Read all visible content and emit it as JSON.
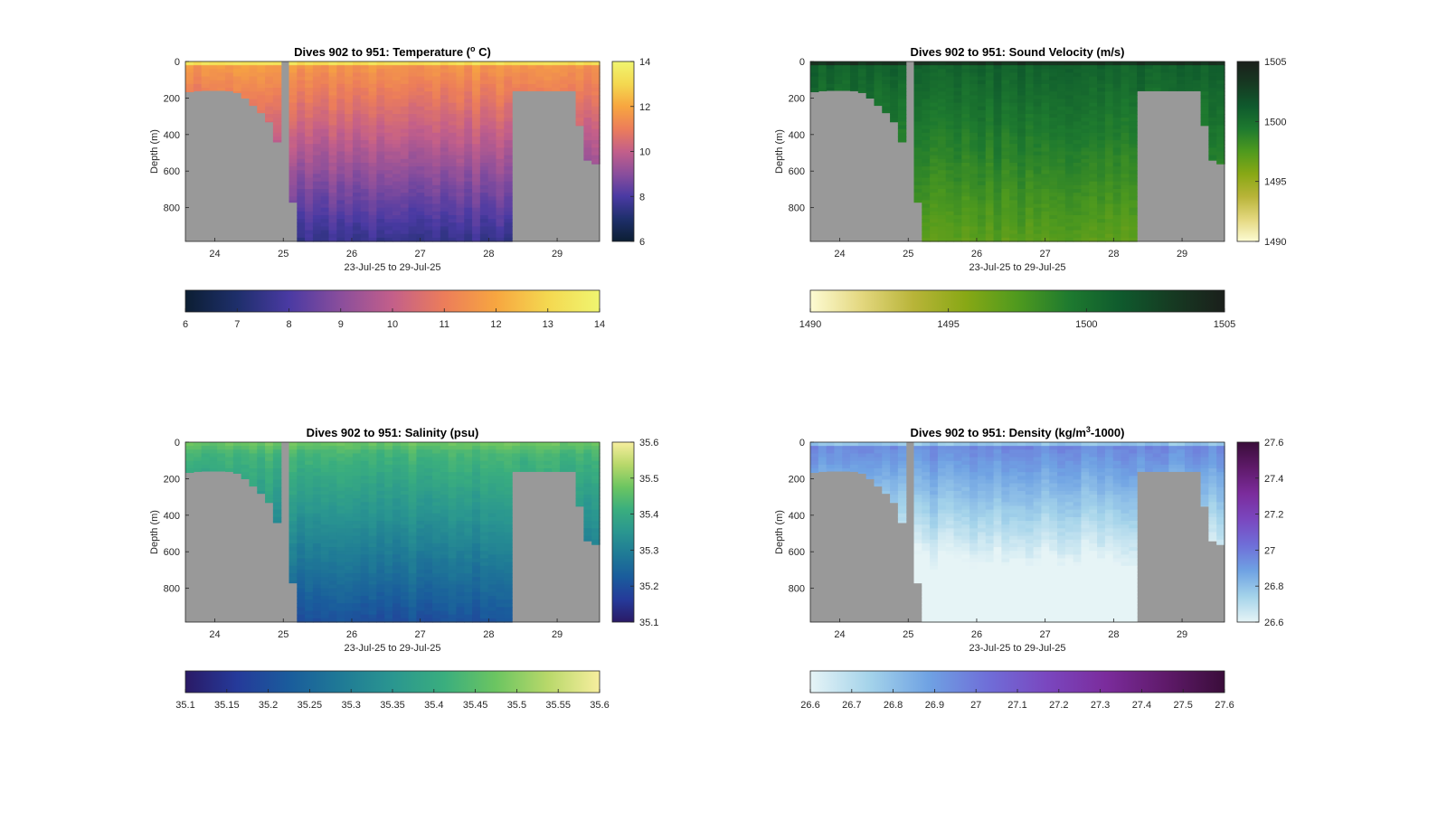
{
  "chart_data": [
    {
      "type": "heatmap",
      "variable": "temperature",
      "title": "Dives 902 to 951: Temperature (",
      "title_sup": "o",
      "title_tail": " C)",
      "xlabel": "23-Jul-25 to 29-Jul-25",
      "ylabel": "Depth (m)",
      "xticks": [
        "24",
        "25",
        "26",
        "27",
        "28",
        "29"
      ],
      "yticks": [
        "0",
        "200",
        "400",
        "600",
        "800"
      ],
      "xlim": [
        23.57,
        29.62
      ],
      "ylim": [
        0,
        985
      ],
      "colorbar_range": [
        6,
        14
      ],
      "side_colorbar_ticks": [
        "6",
        "8",
        "10",
        "12",
        "14"
      ],
      "bottom_colorbar_ticks": [
        "6",
        "7",
        "8",
        "9",
        "10",
        "11",
        "12",
        "13",
        "14"
      ],
      "colormap": [
        "#0c1e33",
        "#1e2f6b",
        "#4a3aa3",
        "#8a4e9c",
        "#c35f8a",
        "#ec7d5a",
        "#f7a640",
        "#f4d850",
        "#f0f570"
      ],
      "profile": {
        "surface": 14,
        "mixed_depth": 30,
        "thermocline_value": 11.6,
        "deep_gradient": 0.0042
      }
    },
    {
      "type": "heatmap",
      "variable": "sound_velocity",
      "title": "Dives 902 to 951: Sound Velocity (m/s)",
      "xlabel": "23-Jul-25 to 29-Jul-25",
      "ylabel": "Depth (m)",
      "xticks": [
        "24",
        "25",
        "26",
        "27",
        "28",
        "29"
      ],
      "yticks": [
        "0",
        "200",
        "400",
        "600",
        "800"
      ],
      "xlim": [
        23.57,
        29.62
      ],
      "ylim": [
        0,
        985
      ],
      "colorbar_range": [
        1490,
        1505
      ],
      "side_colorbar_ticks": [
        "1490",
        "1495",
        "1500",
        "1505"
      ],
      "bottom_colorbar_ticks": [
        "1490",
        "1495",
        "1500",
        "1505"
      ],
      "colormap": [
        "#fdfbd3",
        "#e3d77e",
        "#b8b438",
        "#88a815",
        "#4f9a1e",
        "#1e7a2f",
        "#0f5a2d",
        "#163a22",
        "#1b1f1b"
      ],
      "profile": {
        "surface": 1505,
        "mixed_depth": 30,
        "thermocline_value": 1500.8,
        "deep_gradient": 0.0038
      }
    },
    {
      "type": "heatmap",
      "variable": "salinity",
      "title": "Dives 902 to 951: Salinity (psu)",
      "xlabel": "23-Jul-25 to 29-Jul-25",
      "ylabel": "Depth (m)",
      "xticks": [
        "24",
        "25",
        "26",
        "27",
        "28",
        "29"
      ],
      "yticks": [
        "0",
        "200",
        "400",
        "600",
        "800"
      ],
      "xlim": [
        23.57,
        29.62
      ],
      "ylim": [
        0,
        985
      ],
      "colorbar_range": [
        35.1,
        35.6
      ],
      "side_colorbar_ticks": [
        "35.1",
        "35.2",
        "35.3",
        "35.4",
        "35.5",
        "35.6"
      ],
      "bottom_colorbar_ticks": [
        "35.1",
        "35.15",
        "35.2",
        "35.25",
        "35.3",
        "35.35",
        "35.4",
        "35.45",
        "35.5",
        "35.55",
        "35.6"
      ],
      "colormap": [
        "#2a1a66",
        "#253a9a",
        "#1a5c9c",
        "#1f7a96",
        "#2a9690",
        "#3aae7e",
        "#6cc561",
        "#b8d86a",
        "#f7ee9e"
      ],
      "profile": {
        "surface": 35.48,
        "mixed_depth": 60,
        "thermocline_value": 35.43,
        "deep_gradient": 0.000245
      }
    },
    {
      "type": "heatmap",
      "variable": "density",
      "title": "Dives 902 to 951: Density (kg/m",
      "title_sup": "3",
      "title_tail": "-1000)",
      "xlabel": "23-Jul-25 to 29-Jul-25",
      "ylabel": "Depth (m)",
      "xticks": [
        "24",
        "25",
        "26",
        "27",
        "28",
        "29"
      ],
      "yticks": [
        "0",
        "200",
        "400",
        "600",
        "800"
      ],
      "xlim": [
        23.57,
        29.62
      ],
      "ylim": [
        0,
        985
      ],
      "colorbar_range": [
        26.6,
        27.6
      ],
      "side_colorbar_ticks": [
        "26.6",
        "26.8",
        "27",
        "27.2",
        "27.4",
        "27.6"
      ],
      "bottom_colorbar_ticks": [
        "26.6",
        "26.7",
        "26.8",
        "26.9",
        "27",
        "27.1",
        "27.2",
        "27.3",
        "27.4",
        "27.5",
        "27.6"
      ],
      "colormap": [
        "#e6f4f6",
        "#a4d3ea",
        "#6fa2e3",
        "#6f6ed8",
        "#7a47bf",
        "#7b2c9c",
        "#5f1a6a",
        "#3a0d3a"
      ],
      "profile": {
        "surface": 26.7,
        "mixed_depth": 30,
        "thermocline_value": 26.95,
        "deep_gradient": 0.00057
      }
    }
  ]
}
